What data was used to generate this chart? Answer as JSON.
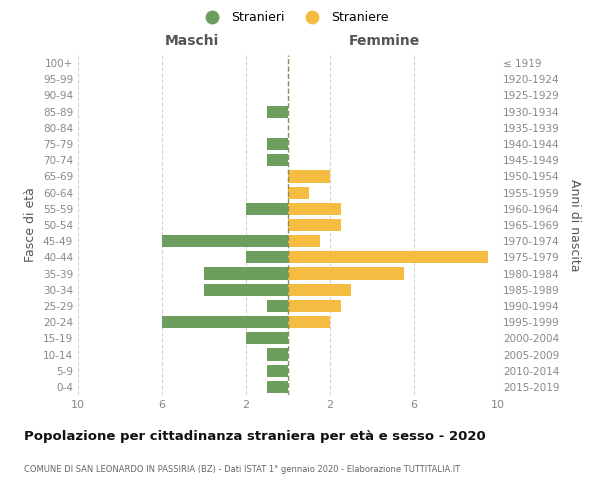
{
  "age_groups_bottom_to_top": [
    "0-4",
    "5-9",
    "10-14",
    "15-19",
    "20-24",
    "25-29",
    "30-34",
    "35-39",
    "40-44",
    "45-49",
    "50-54",
    "55-59",
    "60-64",
    "65-69",
    "70-74",
    "75-79",
    "80-84",
    "85-89",
    "90-94",
    "95-99",
    "100+"
  ],
  "birth_years_bottom_to_top": [
    "2015-2019",
    "2010-2014",
    "2005-2009",
    "2000-2004",
    "1995-1999",
    "1990-1994",
    "1985-1989",
    "1980-1984",
    "1975-1979",
    "1970-1974",
    "1965-1969",
    "1960-1964",
    "1955-1959",
    "1950-1954",
    "1945-1949",
    "1940-1944",
    "1935-1939",
    "1930-1934",
    "1925-1929",
    "1920-1924",
    "≤ 1919"
  ],
  "maschi_bottom_to_top": [
    1,
    1,
    1,
    2,
    6,
    1,
    4,
    4,
    2,
    6,
    0,
    2,
    0,
    0,
    1,
    1,
    0,
    1,
    0,
    0,
    0
  ],
  "femmine_bottom_to_top": [
    0,
    0,
    0,
    0,
    2,
    2.5,
    3,
    5.5,
    9.5,
    1.5,
    2.5,
    2.5,
    1,
    2,
    0,
    0,
    0,
    0,
    0,
    0,
    0
  ],
  "male_color": "#6d9e5e",
  "female_color": "#f5bc42",
  "center_line_color": "#8b8b5a",
  "grid_color": "#d3d3d3",
  "title": "Popolazione per cittadinanza straniera per età e sesso - 2020",
  "subtitle": "COMUNE DI SAN LEONARDO IN PASSIRIA (BZ) - Dati ISTAT 1° gennaio 2020 - Elaborazione TUTTITALIA.IT",
  "ylabel_left": "Fasce di età",
  "ylabel_right": "Anni di nascita",
  "xlabel_left": "Maschi",
  "xlabel_right": "Femmine",
  "legend_male": "Stranieri",
  "legend_female": "Straniere",
  "xlim": 10,
  "background_color": "#ffffff",
  "tick_color": "#888888",
  "label_color": "#555555",
  "title_color": "#111111",
  "subtitle_color": "#666666"
}
